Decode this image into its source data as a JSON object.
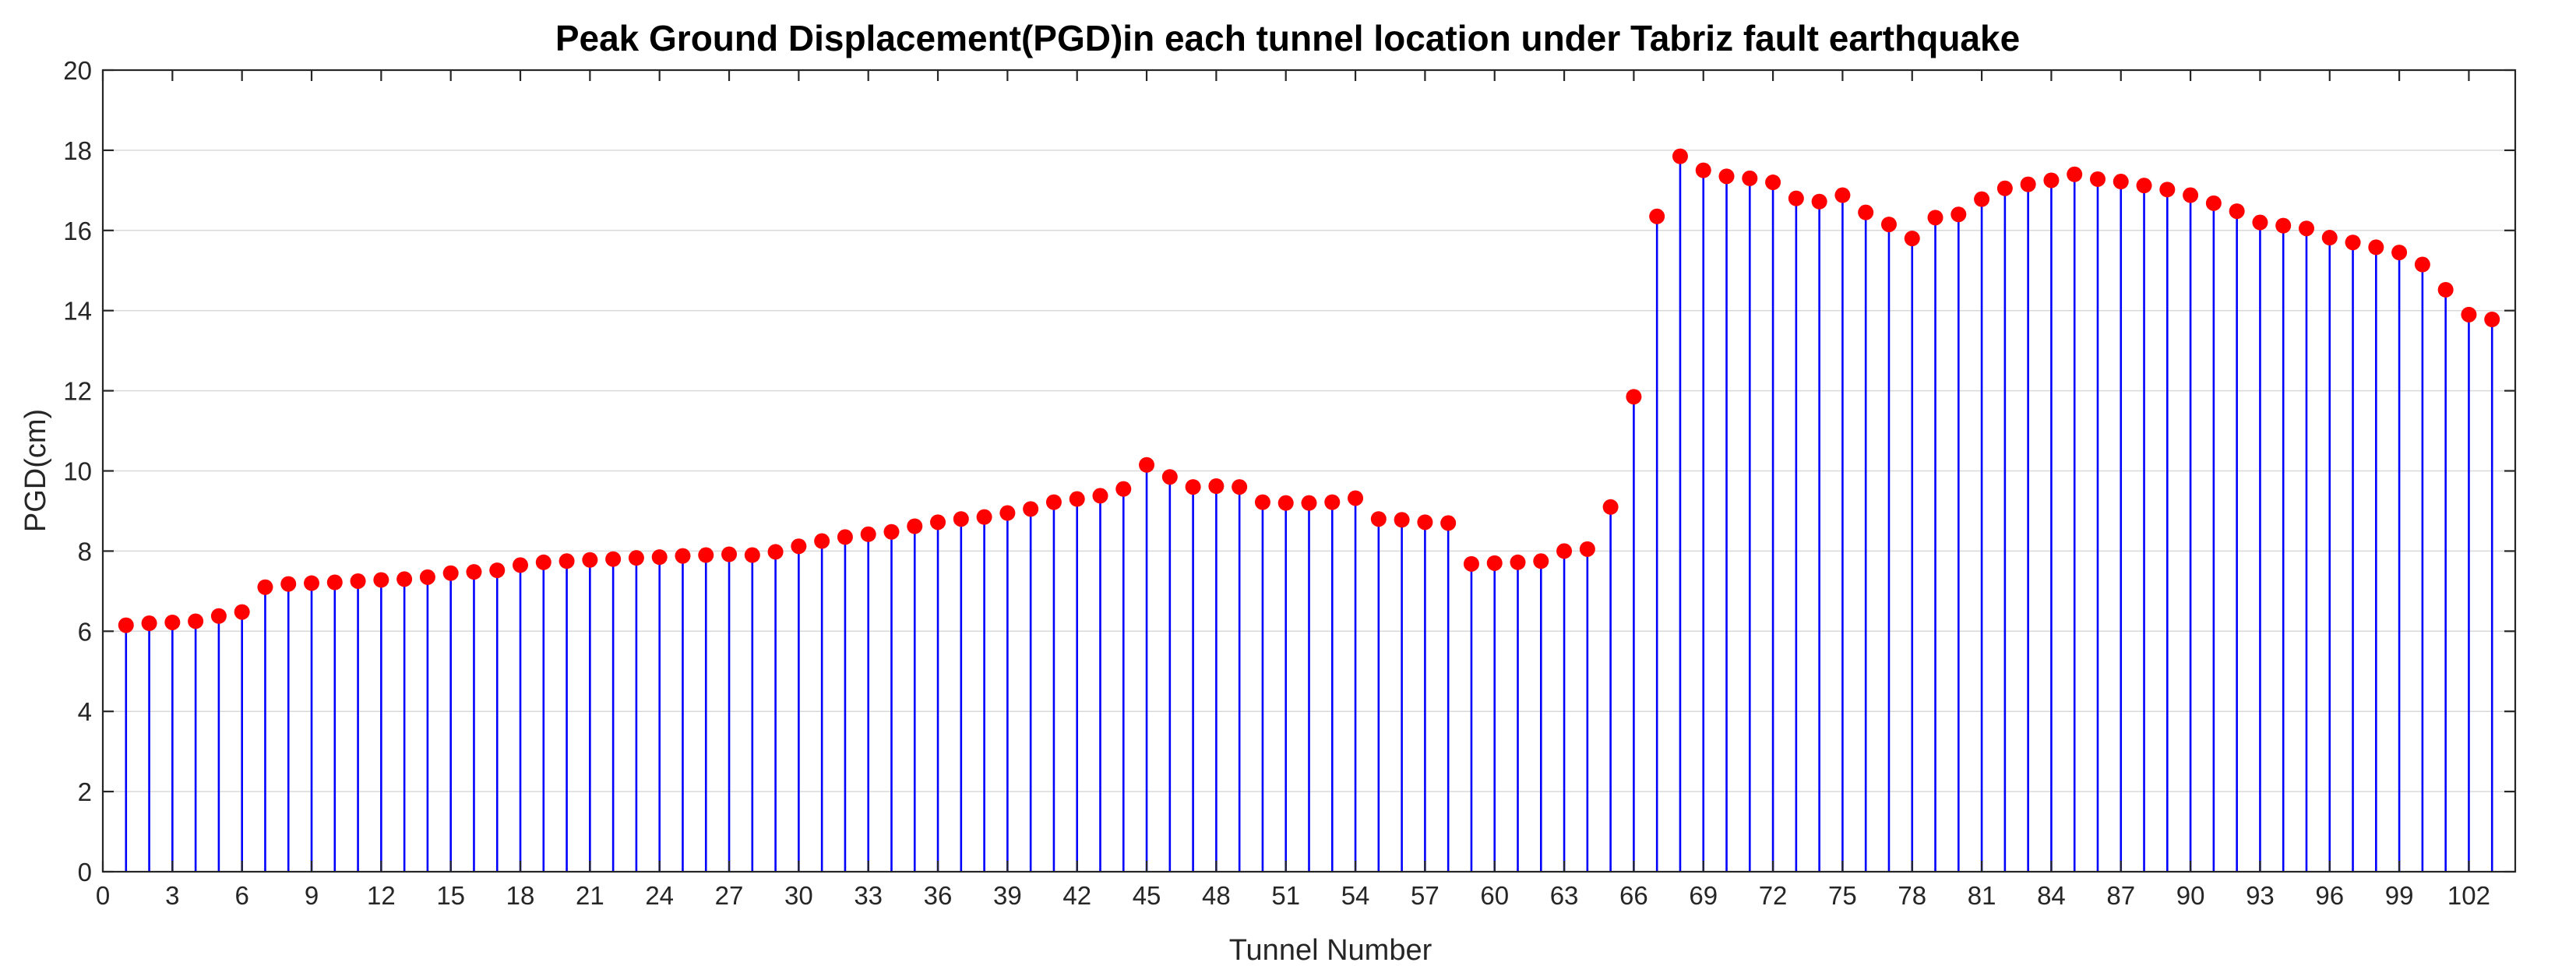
{
  "chart_data": {
    "type": "stem",
    "title": "Peak Ground Displacement(PGD)in each tunnel location under Tabriz fault earthquake",
    "xlabel": "Tunnel Number",
    "ylabel": "PGD(cm)",
    "xlim": [
      0,
      104
    ],
    "ylim": [
      0,
      20
    ],
    "xticks": [
      0,
      3,
      6,
      9,
      12,
      15,
      18,
      21,
      24,
      27,
      30,
      33,
      36,
      39,
      42,
      45,
      48,
      51,
      54,
      57,
      60,
      63,
      66,
      69,
      72,
      75,
      78,
      81,
      84,
      87,
      90,
      93,
      96,
      99,
      102
    ],
    "yticks": [
      0,
      2,
      4,
      6,
      8,
      10,
      12,
      14,
      16,
      18,
      20
    ],
    "grid": "horizontal",
    "stem_color": "#0000ff",
    "marker_color": "#ff0000",
    "x": [
      1,
      2,
      3,
      4,
      5,
      6,
      7,
      8,
      9,
      10,
      11,
      12,
      13,
      14,
      15,
      16,
      17,
      18,
      19,
      20,
      21,
      22,
      23,
      24,
      25,
      26,
      27,
      28,
      29,
      30,
      31,
      32,
      33,
      34,
      35,
      36,
      37,
      38,
      39,
      40,
      41,
      42,
      43,
      44,
      45,
      46,
      47,
      48,
      49,
      50,
      51,
      52,
      53,
      54,
      55,
      56,
      57,
      58,
      59,
      60,
      61,
      62,
      63,
      64,
      65,
      66,
      67,
      68,
      69,
      70,
      71,
      72,
      73,
      74,
      75,
      76,
      77,
      78,
      79,
      80,
      81,
      82,
      83,
      84,
      85,
      86,
      87,
      88,
      89,
      90,
      91,
      92,
      93,
      94,
      95,
      96,
      97,
      98,
      99,
      100,
      101,
      102,
      103
    ],
    "values": [
      6.15,
      6.2,
      6.22,
      6.25,
      6.38,
      6.48,
      7.1,
      7.18,
      7.2,
      7.22,
      7.25,
      7.28,
      7.3,
      7.35,
      7.45,
      7.48,
      7.52,
      7.65,
      7.72,
      7.75,
      7.78,
      7.8,
      7.83,
      7.85,
      7.88,
      7.9,
      7.92,
      7.9,
      7.98,
      8.12,
      8.25,
      8.35,
      8.42,
      8.48,
      8.62,
      8.72,
      8.8,
      8.85,
      8.95,
      9.05,
      9.22,
      9.3,
      9.38,
      9.55,
      10.15,
      9.85,
      9.6,
      9.62,
      9.6,
      9.22,
      9.2,
      9.2,
      9.22,
      9.32,
      8.8,
      8.78,
      8.72,
      8.7,
      7.68,
      7.7,
      7.72,
      7.75,
      8.0,
      8.05,
      9.1,
      11.85,
      16.35,
      17.85,
      17.5,
      17.35,
      17.3,
      17.2,
      16.8,
      16.72,
      16.88,
      16.45,
      16.15,
      15.8,
      16.32,
      16.4,
      16.78,
      17.05,
      17.15,
      17.25,
      17.4,
      17.28,
      17.22,
      17.12,
      17.02,
      16.88,
      16.68,
      16.48,
      16.2,
      16.12,
      16.05,
      15.82,
      15.7,
      15.58,
      15.45,
      15.15,
      14.52,
      13.9,
      13.78
    ]
  }
}
